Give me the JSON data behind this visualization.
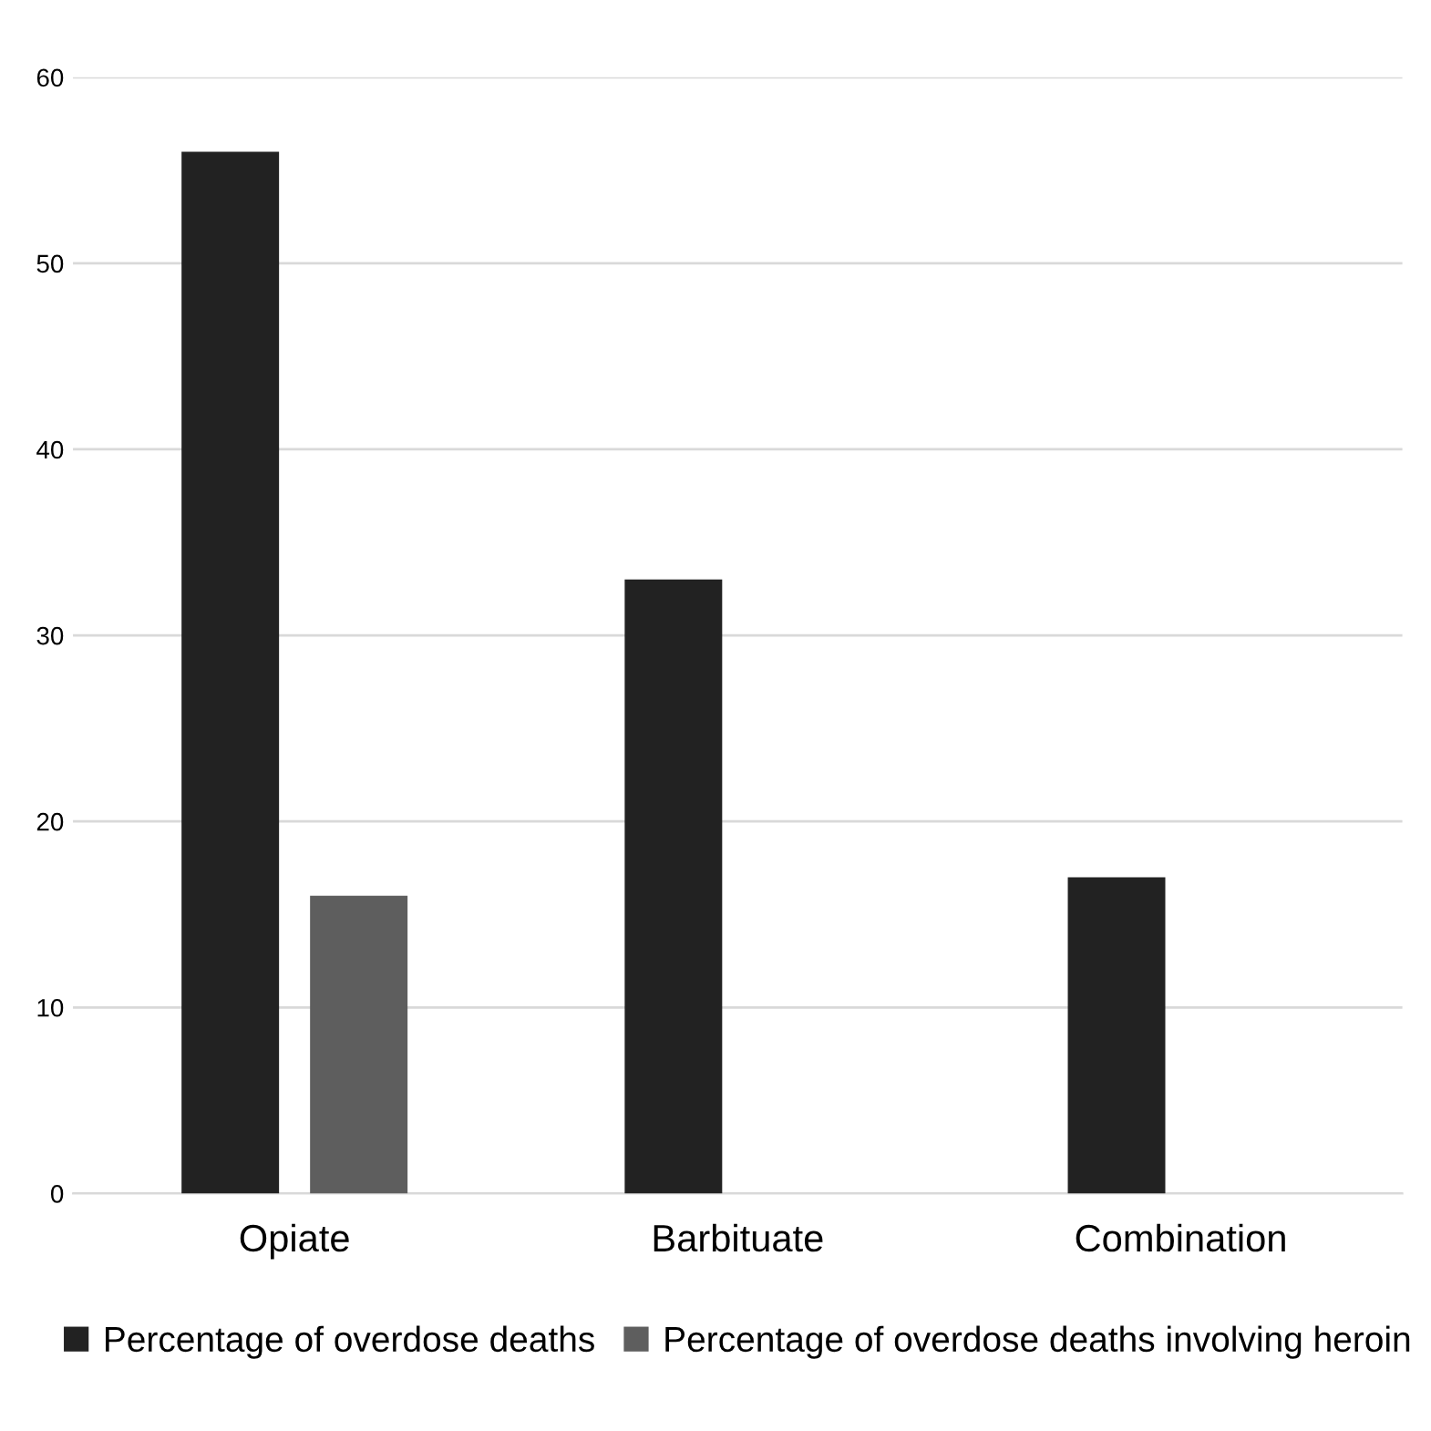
{
  "chart_data": {
    "type": "bar",
    "categories": [
      "Opiate",
      "Barbituate",
      "Combination"
    ],
    "series": [
      {
        "name": "Percentage of overdose deaths",
        "color": "#222222",
        "values": [
          56,
          33,
          17
        ]
      },
      {
        "name": "Percentage of overdose deaths involving heroin",
        "color": "#5e5e5e",
        "values": [
          16,
          null,
          null
        ]
      }
    ],
    "ylim": [
      0,
      60
    ],
    "yticks": [
      0,
      10,
      20,
      30,
      40,
      50,
      60
    ],
    "grid": "y",
    "legend": "bottom"
  }
}
